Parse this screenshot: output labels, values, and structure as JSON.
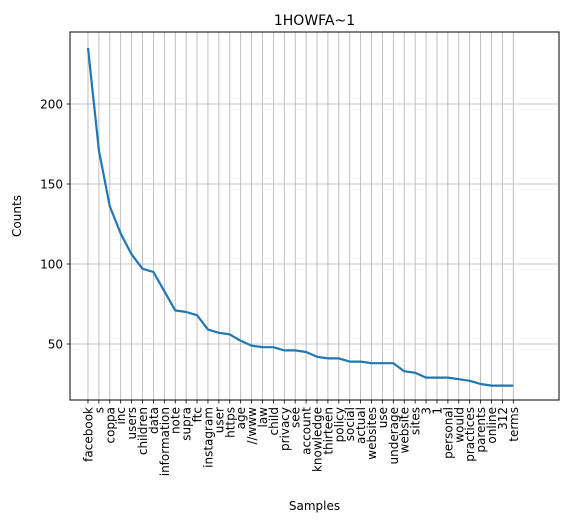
{
  "chart_data": {
    "type": "line",
    "title": "1HOWFA~1",
    "xlabel": "Samples",
    "ylabel": "Counts",
    "ylim": [
      15,
      245
    ],
    "yticks": [
      50,
      100,
      150,
      200
    ],
    "grid": true,
    "line_color": "#1f77b4",
    "categories": [
      "facebook",
      "s",
      "coppa",
      "inc",
      "users",
      "children",
      "data",
      "information",
      "note",
      "supra",
      "ftc",
      "instagram",
      "user",
      "https",
      "age",
      "//www",
      "law",
      "child",
      "privacy",
      "see",
      "account",
      "knowledge",
      "thirteen",
      "policy",
      "social",
      "actual",
      "websites",
      "use",
      "underage",
      "website",
      "sites",
      "3",
      "1",
      "personal",
      "would",
      "practices",
      "parents",
      "online",
      "312",
      "terms"
    ],
    "values": [
      235,
      171,
      136,
      119,
      106,
      97,
      95,
      83,
      71,
      70,
      68,
      59,
      57,
      56,
      52,
      49,
      48,
      48,
      46,
      46,
      45,
      42,
      41,
      41,
      39,
      39,
      38,
      38,
      38,
      33,
      32,
      29,
      29,
      29,
      28,
      27,
      25,
      24,
      24,
      24
    ]
  }
}
